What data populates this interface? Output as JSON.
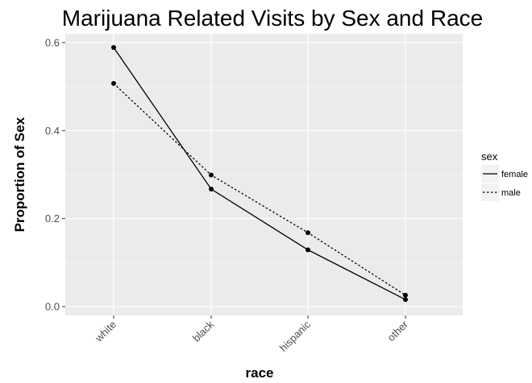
{
  "chart_data": {
    "type": "line",
    "title": "Marijuana Related Visits by Sex and Race",
    "xlabel": "race",
    "ylabel": "Proportion of Sex",
    "categories": [
      "white",
      "black",
      "hispanic",
      "other"
    ],
    "ylim": [
      -0.02,
      0.62
    ],
    "yticks": [
      "0.0",
      "0.2",
      "0.4",
      "0.6"
    ],
    "ytick_values": [
      0.0,
      0.2,
      0.4,
      0.6
    ],
    "grid": true,
    "legend_position": "right",
    "legend_title": "sex",
    "series": [
      {
        "name": "female",
        "linestyle": "solid",
        "values": [
          0.589,
          0.267,
          0.129,
          0.016
        ]
      },
      {
        "name": "male",
        "linestyle": "dotted",
        "values": [
          0.507,
          0.299,
          0.168,
          0.026
        ]
      }
    ],
    "colors": {
      "panel": "#ebebeb",
      "grid": "#ffffff",
      "line": "#000000"
    }
  }
}
